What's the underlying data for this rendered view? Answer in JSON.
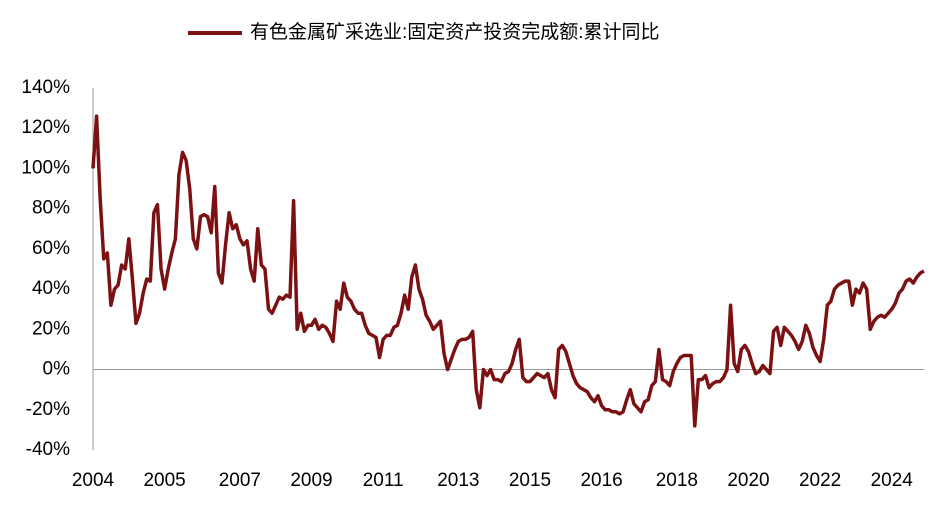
{
  "chart_data": {
    "type": "line",
    "categories": [
      "2004",
      null,
      null,
      null,
      null,
      null,
      null,
      null,
      null,
      null,
      null,
      null,
      null,
      null,
      null,
      null,
      null,
      null,
      null,
      null,
      "2005",
      null,
      null,
      null,
      null,
      null,
      null,
      null,
      null,
      null,
      null,
      null,
      null,
      null,
      null,
      null,
      null,
      null,
      null,
      null,
      null,
      "2007",
      null,
      null,
      null,
      null,
      null,
      null,
      null,
      null,
      null,
      null,
      null,
      null,
      null,
      null,
      null,
      null,
      null,
      null,
      null,
      "2009",
      null,
      null,
      null,
      null,
      null,
      null,
      null,
      null,
      null,
      null,
      null,
      null,
      null,
      null,
      null,
      null,
      null,
      null,
      null,
      "2011",
      null,
      null,
      null,
      null,
      null,
      null,
      null,
      null,
      null,
      null,
      null,
      null,
      null,
      null,
      null,
      null,
      null,
      null,
      null,
      null,
      "2013",
      null,
      null,
      null,
      null,
      null,
      null,
      null,
      null,
      null,
      null,
      null,
      null,
      null,
      null,
      null,
      null,
      null,
      null,
      null,
      "2015",
      null,
      null,
      null,
      null,
      null,
      null,
      null,
      null,
      null,
      null,
      null,
      null,
      null,
      null,
      null,
      null,
      null,
      null,
      null,
      "2016",
      null,
      null,
      null,
      null,
      null,
      null,
      null,
      null,
      null,
      null,
      null,
      null,
      null,
      null,
      null,
      null,
      null,
      null,
      null,
      null,
      "2018",
      null,
      null,
      null,
      null,
      null,
      null,
      null,
      null,
      null,
      null,
      null,
      null,
      null,
      null,
      null,
      null,
      null,
      null,
      null,
      "2020",
      null,
      null,
      null,
      null,
      null,
      null,
      null,
      null,
      null,
      null,
      null,
      null,
      null,
      null,
      null,
      null,
      null,
      null,
      null,
      "2022",
      null,
      null,
      null,
      null,
      null,
      null,
      null,
      null,
      null,
      null,
      null,
      null,
      null,
      null,
      null,
      null,
      null,
      null,
      null,
      "2024",
      null,
      null,
      null,
      null,
      null,
      null,
      null,
      null,
      null
    ],
    "series": [
      {
        "name": "有色金属矿采选业:固定资产投资完成额:累计同比",
        "color": "#7b1113",
        "values": [
          100,
          126,
          85,
          55,
          58,
          32,
          40,
          42,
          52,
          50,
          65,
          45,
          23,
          28,
          38,
          45,
          44,
          78,
          82,
          50,
          40,
          50,
          58,
          65,
          97,
          108,
          104,
          90,
          65,
          60,
          76,
          77,
          76,
          68,
          91,
          48,
          43,
          62,
          78,
          70,
          72,
          65,
          62,
          64,
          50,
          44,
          70,
          52,
          50,
          30,
          28,
          32,
          36,
          35,
          37,
          36,
          84,
          20,
          28,
          19,
          22,
          22,
          25,
          20,
          22,
          21,
          18,
          14,
          34,
          30,
          43,
          36,
          34,
          30,
          28,
          28,
          22,
          18,
          17,
          16,
          6,
          15,
          17,
          17,
          21,
          22,
          28,
          37,
          30,
          46,
          52,
          40,
          35,
          27,
          24,
          20,
          22,
          24,
          8,
          0,
          5,
          10,
          14,
          15,
          15,
          16,
          19,
          -10,
          -19,
          0,
          -3,
          0,
          -5,
          -5,
          -6,
          -2,
          -1,
          3,
          10,
          15,
          -4,
          -6,
          -6,
          -4,
          -2,
          -3,
          -4,
          -2,
          -10,
          -14,
          10,
          12,
          9,
          3,
          -3,
          -7,
          -9,
          -10,
          -11,
          -14,
          -16,
          -13,
          -18,
          -20,
          -20,
          -21,
          -21,
          -22,
          -21,
          -15,
          -10,
          -17,
          -19,
          -21,
          -16,
          -15,
          -8,
          -6,
          10,
          -5,
          -6,
          -8,
          -1,
          3,
          6,
          7,
          7,
          7,
          -28,
          -5,
          -5,
          -3,
          -9,
          -7,
          -6,
          -6,
          -4,
          0,
          32,
          3,
          -1,
          10,
          12,
          9,
          3,
          -2,
          -1,
          2,
          0,
          -2,
          19,
          21,
          12,
          21,
          19,
          17,
          14,
          10,
          14,
          22,
          18,
          11,
          7,
          4,
          15,
          32,
          34,
          40,
          42,
          43,
          44,
          44,
          32,
          40,
          38,
          43,
          40,
          20,
          24,
          26,
          27,
          26,
          28,
          30,
          33,
          38,
          40,
          44,
          45,
          43,
          46,
          48,
          49
        ]
      }
    ],
    "ylim": [
      -40,
      140
    ],
    "yticks": [
      {
        "value": -40,
        "label": "-40%"
      },
      {
        "value": -20,
        "label": "-20%"
      },
      {
        "value": 0,
        "label": "0%"
      },
      {
        "value": 20,
        "label": "20%"
      },
      {
        "value": 40,
        "label": "40%"
      },
      {
        "value": 60,
        "label": "60%"
      },
      {
        "value": 80,
        "label": "80%"
      },
      {
        "value": 100,
        "label": "100%"
      },
      {
        "value": 120,
        "label": "120%"
      },
      {
        "value": 140,
        "label": "140%"
      }
    ],
    "legend": "top"
  }
}
